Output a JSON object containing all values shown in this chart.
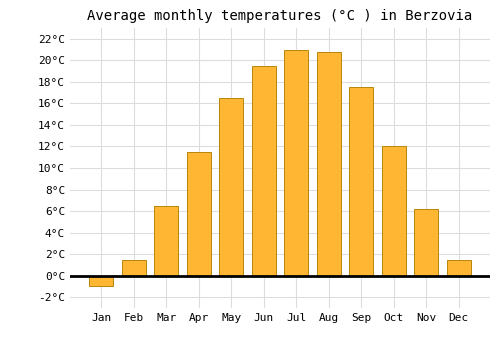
{
  "title": "Average monthly temperatures (°C ) in Berzovia",
  "months": [
    "Jan",
    "Feb",
    "Mar",
    "Apr",
    "May",
    "Jun",
    "Jul",
    "Aug",
    "Sep",
    "Oct",
    "Nov",
    "Dec"
  ],
  "values": [
    -1.0,
    1.5,
    6.5,
    11.5,
    16.5,
    19.5,
    21.0,
    20.8,
    17.5,
    12.0,
    6.2,
    1.5
  ],
  "bar_color": "#FFB733",
  "bar_edge_color": "#B8860B",
  "ylim": [
    -3,
    23
  ],
  "yticks": [
    -2,
    0,
    2,
    4,
    6,
    8,
    10,
    12,
    14,
    16,
    18,
    20,
    22
  ],
  "background_color": "#FFFFFF",
  "grid_color": "#DDDDDD",
  "title_fontsize": 10,
  "tick_fontsize": 8,
  "font_family": "monospace"
}
